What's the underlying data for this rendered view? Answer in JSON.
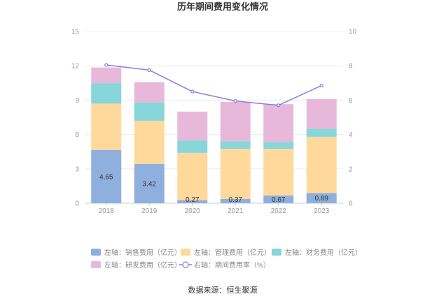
{
  "chart_data": {
    "type": "bar",
    "title": "历年期间费用变化情况",
    "categories": [
      "2018",
      "2019",
      "2020",
      "2021",
      "2022",
      "2023"
    ],
    "y_left": {
      "min": 0,
      "max": 15,
      "ticks": [
        "0",
        "3",
        "6",
        "9",
        "12",
        "15"
      ]
    },
    "y_right": {
      "min": 0,
      "max": 10,
      "ticks": [
        "0",
        "2",
        "4",
        "6",
        "8",
        "10"
      ]
    },
    "grid": true,
    "legend_position": "bottom",
    "stacked_series": [
      {
        "name": "左轴：销售费用（亿元）",
        "color": "#8fb0de",
        "values": [
          4.65,
          3.42,
          0.27,
          0.37,
          0.67,
          0.89
        ],
        "labels": [
          "4.65",
          "3.42",
          "0.27",
          "0.37",
          "0.67",
          "0.89"
        ]
      },
      {
        "name": "左轴：管理费用（亿元）",
        "color": "#ffd99b",
        "values": [
          4.05,
          3.78,
          4.13,
          4.38,
          4.08,
          4.91
        ]
      },
      {
        "name": "左轴：财务费用（亿元）",
        "color": "#86d6da",
        "values": [
          1.78,
          1.6,
          1.08,
          0.65,
          0.6,
          0.7
        ]
      },
      {
        "name": "左轴：研发费用（亿元）",
        "color": "#e8b8da",
        "values": [
          1.37,
          1.77,
          2.52,
          3.45,
          3.3,
          2.6
        ]
      }
    ],
    "line_series": {
      "name": "右轴：期间费用率（%）",
      "color": "#8080e8",
      "axis": "right",
      "values": [
        8.05,
        7.75,
        6.5,
        5.95,
        5.7,
        6.85
      ]
    },
    "source": "数据来源：恒生聚源"
  }
}
